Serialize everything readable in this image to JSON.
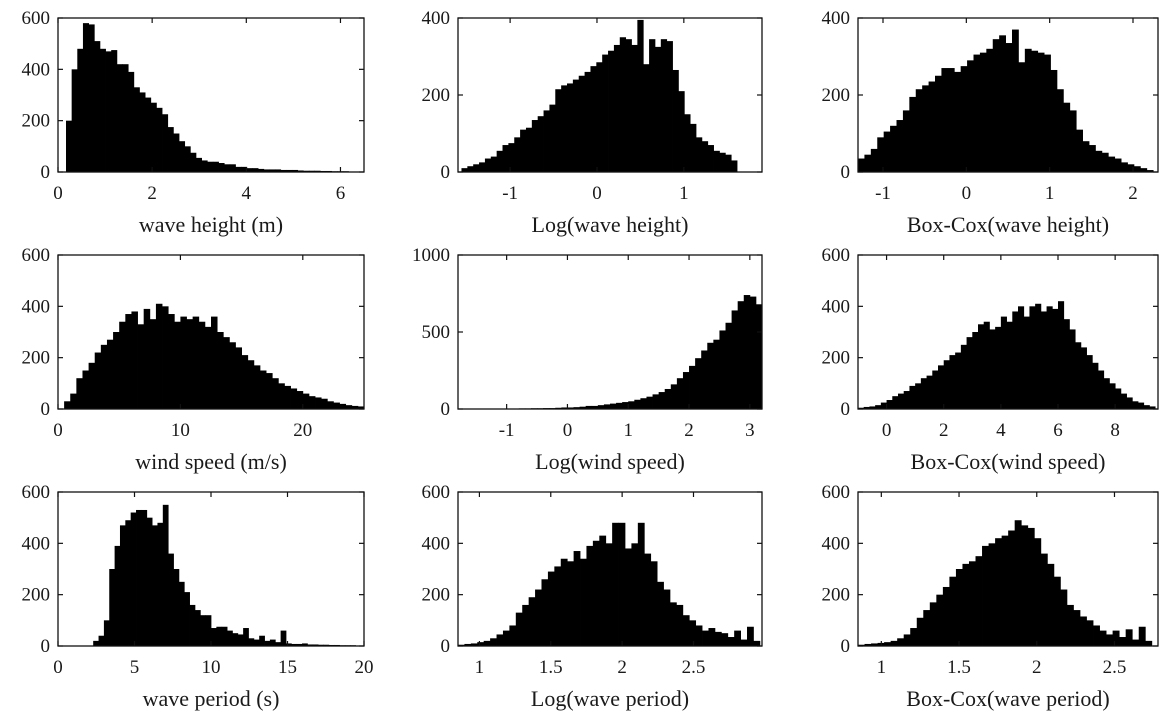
{
  "chart_data": [
    {
      "type": "bar",
      "subtype": "histogram",
      "xlabel": "wave height (m)",
      "ylabel": "",
      "xlim": [
        0,
        6.5
      ],
      "ylim": [
        0,
        600
      ],
      "xticks": [
        0,
        2,
        4,
        6
      ],
      "yticks": [
        0,
        200,
        400,
        600
      ],
      "bin_start": 0.17,
      "bin_width": 0.12,
      "values": [
        200,
        400,
        480,
        580,
        575,
        510,
        480,
        470,
        475,
        420,
        420,
        390,
        330,
        310,
        290,
        270,
        250,
        225,
        175,
        150,
        120,
        100,
        75,
        55,
        45,
        40,
        40,
        35,
        30,
        30,
        20,
        20,
        15,
        15,
        12,
        10,
        10,
        10,
        8,
        8,
        8,
        6,
        5,
        5,
        5,
        4,
        4,
        3,
        3,
        3,
        2,
        2
      ]
    },
    {
      "type": "bar",
      "subtype": "histogram",
      "xlabel": "Log(wave height)",
      "ylabel": "",
      "xlim": [
        -1.6,
        1.9
      ],
      "ylim": [
        0,
        400
      ],
      "xticks": [
        -1,
        0,
        1
      ],
      "yticks": [
        0,
        200,
        400
      ],
      "bin_start": -1.56,
      "bin_width": 0.0675,
      "values": [
        10,
        15,
        20,
        25,
        35,
        40,
        55,
        70,
        75,
        90,
        110,
        115,
        135,
        145,
        160,
        175,
        215,
        225,
        230,
        240,
        250,
        260,
        275,
        285,
        305,
        315,
        330,
        350,
        345,
        330,
        395,
        280,
        345,
        325,
        345,
        340,
        265,
        210,
        150,
        125,
        90,
        80,
        70,
        55,
        50,
        45,
        30
      ]
    },
    {
      "type": "bar",
      "subtype": "histogram",
      "xlabel": "Box-Cox(wave height)",
      "ylabel": "",
      "xlim": [
        -1.3,
        2.3
      ],
      "ylim": [
        0,
        400
      ],
      "xticks": [
        -1,
        0,
        1,
        2
      ],
      "yticks": [
        0,
        200,
        400
      ],
      "bin_start": -1.3,
      "bin_width": 0.077,
      "values": [
        35,
        45,
        60,
        90,
        105,
        120,
        135,
        160,
        195,
        215,
        225,
        235,
        250,
        270,
        270,
        260,
        275,
        290,
        305,
        310,
        320,
        345,
        355,
        335,
        370,
        285,
        320,
        315,
        310,
        305,
        265,
        215,
        180,
        160,
        110,
        80,
        70,
        55,
        50,
        40,
        35,
        25,
        20,
        15,
        10,
        5
      ]
    },
    {
      "type": "bar",
      "subtype": "histogram",
      "xlabel": "wind speed (m/s)",
      "ylabel": "",
      "xlim": [
        0,
        25
      ],
      "ylim": [
        0,
        600
      ],
      "xticks": [
        0,
        10,
        20
      ],
      "yticks": [
        0,
        200,
        400,
        600
      ],
      "bin_start": 0.5,
      "bin_width": 0.5,
      "values": [
        30,
        60,
        120,
        150,
        180,
        220,
        250,
        270,
        300,
        340,
        370,
        380,
        330,
        390,
        350,
        410,
        400,
        370,
        340,
        360,
        350,
        360,
        340,
        320,
        360,
        300,
        280,
        260,
        240,
        210,
        190,
        170,
        150,
        140,
        120,
        100,
        90,
        80,
        70,
        60,
        50,
        45,
        40,
        30,
        25,
        20,
        15,
        12,
        10
      ]
    },
    {
      "type": "bar",
      "subtype": "histogram",
      "xlabel": "Log(wind speed)",
      "ylabel": "",
      "xlim": [
        -1.8,
        3.2
      ],
      "ylim": [
        0,
        1000
      ],
      "xticks": [
        -1,
        0,
        1,
        2,
        3
      ],
      "yticks": [
        0,
        500,
        1000
      ],
      "bin_start": -1.8,
      "bin_width": 0.1,
      "values": [
        3,
        3,
        3,
        3,
        3,
        3,
        3,
        3,
        3,
        3,
        4,
        4,
        5,
        5,
        6,
        6,
        8,
        10,
        10,
        12,
        15,
        20,
        20,
        25,
        30,
        35,
        40,
        45,
        50,
        60,
        70,
        80,
        95,
        110,
        130,
        160,
        200,
        240,
        280,
        330,
        380,
        430,
        450,
        510,
        560,
        640,
        700,
        740,
        730,
        680,
        600,
        420,
        250,
        130,
        60,
        20
      ]
    },
    {
      "type": "bar",
      "subtype": "histogram",
      "xlabel": "Box-Cox(wind speed)",
      "ylabel": "",
      "xlim": [
        -1,
        9.5
      ],
      "ylim": [
        0,
        600
      ],
      "xticks": [
        0,
        2,
        4,
        6,
        8
      ],
      "yticks": [
        0,
        200,
        400,
        600
      ],
      "bin_start": -1,
      "bin_width": 0.2,
      "values": [
        5,
        8,
        10,
        15,
        25,
        35,
        50,
        60,
        70,
        90,
        100,
        120,
        130,
        150,
        170,
        190,
        210,
        220,
        250,
        280,
        300,
        330,
        340,
        310,
        320,
        360,
        340,
        380,
        400,
        360,
        400,
        410,
        380,
        400,
        390,
        420,
        350,
        310,
        260,
        240,
        210,
        180,
        150,
        120,
        100,
        80,
        60,
        45,
        30,
        25,
        15,
        10
      ]
    },
    {
      "type": "bar",
      "subtype": "histogram",
      "xlabel": "wave period (s)",
      "ylabel": "",
      "xlim": [
        0,
        20
      ],
      "ylim": [
        0,
        600
      ],
      "xticks": [
        0,
        5,
        10,
        15,
        20
      ],
      "yticks": [
        0,
        200,
        400,
        600
      ],
      "bin_start": 2.3,
      "bin_width": 0.35,
      "values": [
        20,
        40,
        100,
        300,
        390,
        470,
        490,
        520,
        530,
        530,
        500,
        470,
        480,
        550,
        360,
        300,
        250,
        210,
        160,
        140,
        120,
        120,
        70,
        75,
        75,
        60,
        50,
        45,
        70,
        30,
        25,
        40,
        20,
        25,
        15,
        60,
        10,
        8,
        8,
        10,
        6,
        6,
        5,
        5,
        4,
        4,
        3,
        3,
        3,
        2,
        2
      ]
    },
    {
      "type": "bar",
      "subtype": "histogram",
      "xlabel": "Log(wave period)",
      "ylabel": "",
      "xlim": [
        0.85,
        2.98
      ],
      "ylim": [
        0,
        600
      ],
      "xticks": [
        1,
        1.5,
        2,
        2.5
      ],
      "yticks": [
        0,
        200,
        400,
        600
      ],
      "bin_start": 0.85,
      "bin_width": 0.045,
      "values": [
        5,
        8,
        10,
        15,
        20,
        30,
        45,
        60,
        80,
        130,
        160,
        190,
        220,
        260,
        290,
        310,
        340,
        330,
        370,
        340,
        390,
        410,
        430,
        400,
        480,
        480,
        380,
        400,
        480,
        360,
        330,
        250,
        220,
        170,
        160,
        120,
        100,
        80,
        60,
        70,
        55,
        50,
        35,
        60,
        25,
        75,
        20
      ]
    },
    {
      "type": "bar",
      "subtype": "histogram",
      "xlabel": "Box-Cox(wave period)",
      "ylabel": "",
      "xlim": [
        0.85,
        2.78
      ],
      "ylim": [
        0,
        600
      ],
      "xticks": [
        1,
        1.5,
        2,
        2.5
      ],
      "yticks": [
        0,
        200,
        400,
        600
      ],
      "bin_start": 0.85,
      "bin_width": 0.042,
      "values": [
        5,
        8,
        10,
        12,
        15,
        20,
        30,
        45,
        70,
        110,
        140,
        170,
        200,
        230,
        270,
        300,
        320,
        330,
        350,
        390,
        400,
        420,
        430,
        450,
        490,
        470,
        460,
        420,
        360,
        320,
        270,
        220,
        160,
        140,
        115,
        100,
        80,
        60,
        45,
        60,
        35,
        65,
        25,
        75,
        20
      ]
    }
  ]
}
